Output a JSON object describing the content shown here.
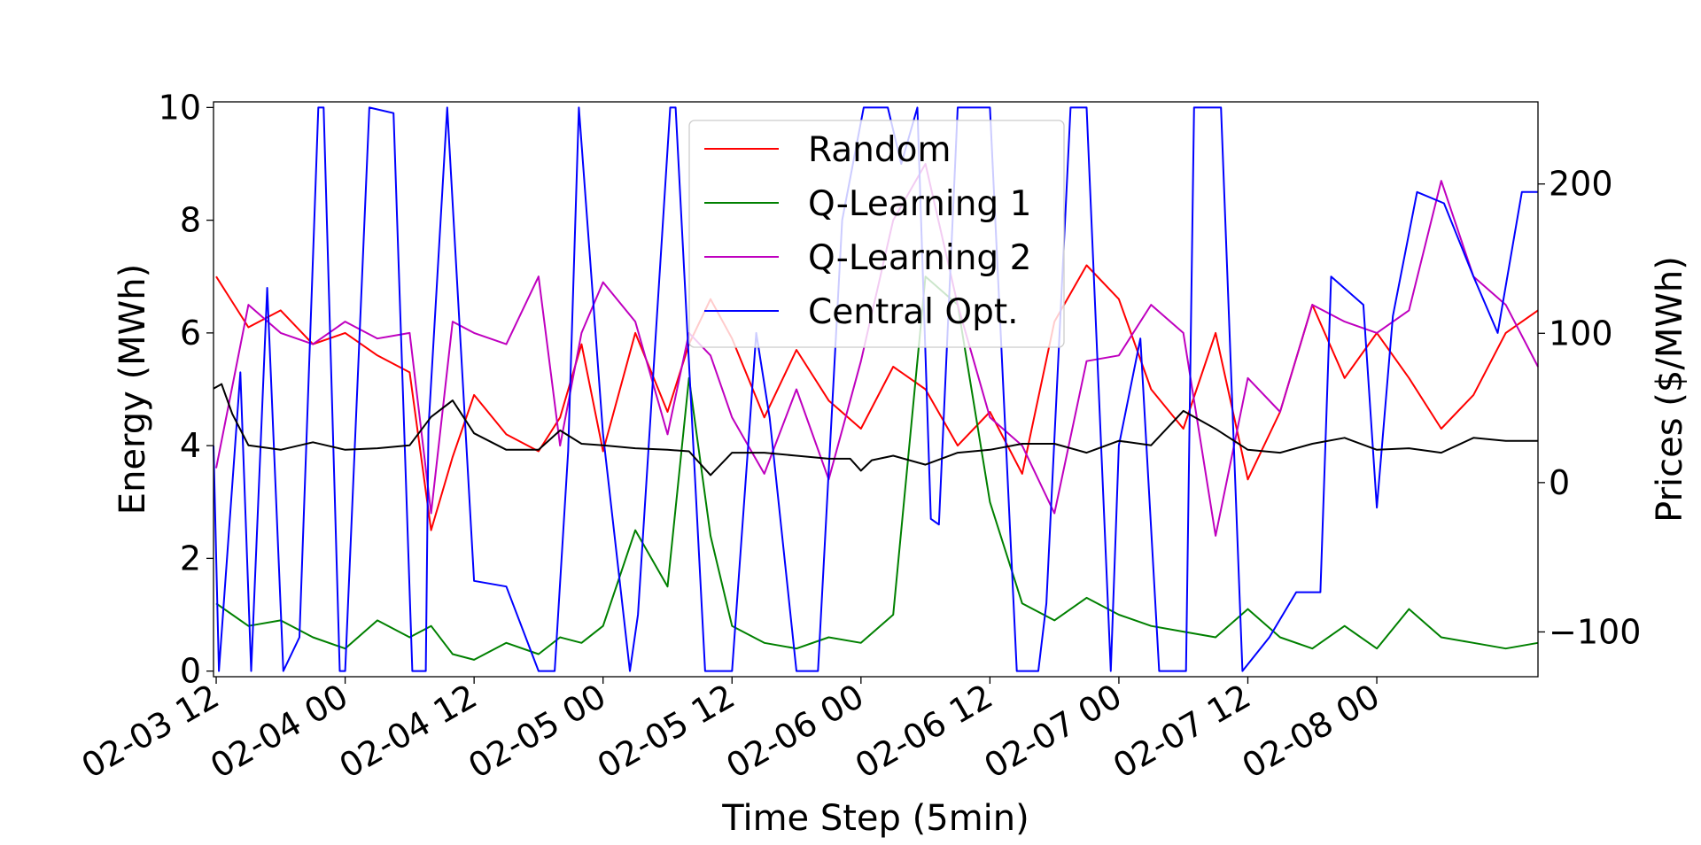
{
  "chart_data": {
    "type": "line",
    "xlabel": "Time Step (5min)",
    "ylabel": "Energy (MWh)",
    "y2label": "Prices ($/MWh)",
    "ylim": [
      -0.1,
      10.1
    ],
    "y2lim": [
      -130,
      255
    ],
    "yticks": [
      "0",
      "2",
      "4",
      "6",
      "8",
      "10"
    ],
    "y2ticks": [
      "−100",
      "0",
      "100",
      "200"
    ],
    "xlim": [
      "2024-02-03T11:45",
      "2024-02-08T15:00"
    ],
    "xticks": [
      "02-03 12",
      "02-04 00",
      "02-04 12",
      "02-05 00",
      "02-05 12",
      "02-06 00",
      "02-06 12",
      "02-07 00",
      "02-07 12",
      "02-08 00"
    ],
    "legend_position": "upper-center",
    "grid": false,
    "series": [
      {
        "name": "Random",
        "color": "#ff0000",
        "axis": "left",
        "x": [
          "2024-02-03T12:00",
          "2024-02-03T15:00",
          "2024-02-03T18:00",
          "2024-02-03T21:00",
          "2024-02-04T00:00",
          "2024-02-04T03:00",
          "2024-02-04T06:00",
          "2024-02-04T08:00",
          "2024-02-04T10:00",
          "2024-02-04T12:00",
          "2024-02-04T15:00",
          "2024-02-04T18:00",
          "2024-02-04T20:00",
          "2024-02-04T22:00",
          "2024-02-05T00:00",
          "2024-02-05T03:00",
          "2024-02-05T06:00",
          "2024-02-05T08:00",
          "2024-02-05T10:00",
          "2024-02-05T12:00",
          "2024-02-05T15:00",
          "2024-02-05T18:00",
          "2024-02-05T21:00",
          "2024-02-06T00:00",
          "2024-02-06T03:00",
          "2024-02-06T06:00",
          "2024-02-06T09:00",
          "2024-02-06T12:00",
          "2024-02-06T15:00",
          "2024-02-06T18:00",
          "2024-02-06T21:00",
          "2024-02-07T00:00",
          "2024-02-07T03:00",
          "2024-02-07T06:00",
          "2024-02-07T09:00",
          "2024-02-07T12:00",
          "2024-02-07T15:00",
          "2024-02-07T18:00",
          "2024-02-07T21:00",
          "2024-02-08T00:00",
          "2024-02-08T03:00",
          "2024-02-08T06:00",
          "2024-02-08T09:00",
          "2024-02-08T12:00",
          "2024-02-08T15:00"
        ],
        "y": [
          7.0,
          6.1,
          6.4,
          5.8,
          6.0,
          5.6,
          5.3,
          2.5,
          3.8,
          4.9,
          4.2,
          3.9,
          4.5,
          5.8,
          3.9,
          6.0,
          4.6,
          5.8,
          6.6,
          5.9,
          4.5,
          5.7,
          4.8,
          4.3,
          5.4,
          5.0,
          4.0,
          4.6,
          3.5,
          6.2,
          7.2,
          6.6,
          5.0,
          4.3,
          6.0,
          3.4,
          4.6,
          6.5,
          5.2,
          6.0,
          5.2,
          4.3,
          4.9,
          6.0,
          6.4
        ]
      },
      {
        "name": "Q-Learning 1",
        "color": "#008000",
        "axis": "left",
        "x": [
          "2024-02-03T12:00",
          "2024-02-03T15:00",
          "2024-02-03T18:00",
          "2024-02-03T21:00",
          "2024-02-04T00:00",
          "2024-02-04T03:00",
          "2024-02-04T06:00",
          "2024-02-04T08:00",
          "2024-02-04T10:00",
          "2024-02-04T12:00",
          "2024-02-04T15:00",
          "2024-02-04T18:00",
          "2024-02-04T20:00",
          "2024-02-04T22:00",
          "2024-02-05T00:00",
          "2024-02-05T03:00",
          "2024-02-05T06:00",
          "2024-02-05T08:00",
          "2024-02-05T10:00",
          "2024-02-05T12:00",
          "2024-02-05T15:00",
          "2024-02-05T18:00",
          "2024-02-05T21:00",
          "2024-02-06T00:00",
          "2024-02-06T03:00",
          "2024-02-06T06:00",
          "2024-02-06T09:00",
          "2024-02-06T12:00",
          "2024-02-06T15:00",
          "2024-02-06T18:00",
          "2024-02-06T21:00",
          "2024-02-07T00:00",
          "2024-02-07T03:00",
          "2024-02-07T06:00",
          "2024-02-07T09:00",
          "2024-02-07T12:00",
          "2024-02-07T15:00",
          "2024-02-07T18:00",
          "2024-02-07T21:00",
          "2024-02-08T00:00",
          "2024-02-08T03:00",
          "2024-02-08T06:00",
          "2024-02-08T09:00",
          "2024-02-08T12:00",
          "2024-02-08T15:00"
        ],
        "y": [
          1.2,
          0.8,
          0.9,
          0.6,
          0.4,
          0.9,
          0.6,
          0.8,
          0.3,
          0.2,
          0.5,
          0.3,
          0.6,
          0.5,
          0.8,
          2.5,
          1.5,
          5.2,
          2.4,
          0.8,
          0.5,
          0.4,
          0.6,
          0.5,
          1.0,
          7.0,
          6.5,
          3.0,
          1.2,
          0.9,
          1.3,
          1.0,
          0.8,
          0.7,
          0.6,
          1.1,
          0.6,
          0.4,
          0.8,
          0.4,
          1.1,
          0.6,
          0.5,
          0.4,
          0.5
        ]
      },
      {
        "name": "Q-Learning 2",
        "color": "#bf00bf",
        "axis": "left",
        "x": [
          "2024-02-03T12:00",
          "2024-02-03T15:00",
          "2024-02-03T18:00",
          "2024-02-03T21:00",
          "2024-02-04T00:00",
          "2024-02-04T03:00",
          "2024-02-04T06:00",
          "2024-02-04T08:00",
          "2024-02-04T10:00",
          "2024-02-04T12:00",
          "2024-02-04T15:00",
          "2024-02-04T18:00",
          "2024-02-04T20:00",
          "2024-02-04T22:00",
          "2024-02-05T00:00",
          "2024-02-05T03:00",
          "2024-02-05T06:00",
          "2024-02-05T08:00",
          "2024-02-05T10:00",
          "2024-02-05T12:00",
          "2024-02-05T15:00",
          "2024-02-05T18:00",
          "2024-02-05T21:00",
          "2024-02-06T00:00",
          "2024-02-06T03:00",
          "2024-02-06T06:00",
          "2024-02-06T09:00",
          "2024-02-06T12:00",
          "2024-02-06T15:00",
          "2024-02-06T18:00",
          "2024-02-06T21:00",
          "2024-02-07T00:00",
          "2024-02-07T03:00",
          "2024-02-07T06:00",
          "2024-02-07T09:00",
          "2024-02-07T12:00",
          "2024-02-07T15:00",
          "2024-02-07T18:00",
          "2024-02-07T21:00",
          "2024-02-08T00:00",
          "2024-02-08T03:00",
          "2024-02-08T06:00",
          "2024-02-08T09:00",
          "2024-02-08T12:00",
          "2024-02-08T15:00"
        ],
        "y": [
          3.6,
          6.5,
          6.0,
          5.8,
          6.2,
          5.9,
          6.0,
          2.8,
          6.2,
          6.0,
          5.8,
          7.0,
          4.0,
          6.0,
          6.9,
          6.2,
          4.2,
          6.0,
          5.6,
          4.5,
          3.5,
          5.0,
          3.4,
          5.5,
          8.0,
          9.0,
          6.5,
          4.5,
          4.0,
          2.8,
          5.5,
          5.6,
          6.5,
          6.0,
          2.4,
          5.2,
          4.6,
          6.5,
          6.2,
          6.0,
          6.4,
          8.7,
          7.0,
          6.5,
          5.4
        ]
      },
      {
        "name": "Central Opt.",
        "color": "#0000ff",
        "axis": "left",
        "x": [
          "2024-02-03T11:45",
          "2024-02-03T12:15",
          "2024-02-03T14:15",
          "2024-02-03T15:15",
          "2024-02-03T16:45",
          "2024-02-03T18:15",
          "2024-02-03T19:45",
          "2024-02-03T21:30",
          "2024-02-03T22:00",
          "2024-02-03T23:30",
          "2024-02-04T00:00",
          "2024-02-04T02:15",
          "2024-02-04T04:30",
          "2024-02-04T06:15",
          "2024-02-04T07:30",
          "2024-02-04T07:45",
          "2024-02-04T09:30",
          "2024-02-04T12:00",
          "2024-02-04T15:00",
          "2024-02-04T18:00",
          "2024-02-04T19:30",
          "2024-02-04T20:45",
          "2024-02-04T21:45",
          "2024-02-05T00:00",
          "2024-02-05T02:30",
          "2024-02-05T03:15",
          "2024-02-05T06:15",
          "2024-02-05T06:45",
          "2024-02-05T09:30",
          "2024-02-05T12:00",
          "2024-02-05T14:15",
          "2024-02-05T15:30",
          "2024-02-05T18:00",
          "2024-02-05T20:00",
          "2024-02-05T22:15",
          "2024-02-06T00:15",
          "2024-02-06T02:30",
          "2024-02-06T03:45",
          "2024-02-06T05:15",
          "2024-02-06T06:30",
          "2024-02-06T07:15",
          "2024-02-06T09:00",
          "2024-02-06T12:00",
          "2024-02-06T14:30",
          "2024-02-06T16:30",
          "2024-02-06T17:15",
          "2024-02-06T19:30",
          "2024-02-06T21:00",
          "2024-02-06T23:15",
          "2024-02-07T00:00",
          "2024-02-07T02:00",
          "2024-02-07T03:45",
          "2024-02-07T06:15",
          "2024-02-07T07:00",
          "2024-02-07T09:30",
          "2024-02-07T11:30",
          "2024-02-07T14:00",
          "2024-02-07T16:30",
          "2024-02-07T18:45",
          "2024-02-07T19:45",
          "2024-02-07T22:45",
          "2024-02-08T00:00",
          "2024-02-08T01:30",
          "2024-02-08T03:45",
          "2024-02-08T06:15",
          "2024-02-08T09:00",
          "2024-02-08T11:15",
          "2024-02-08T13:30",
          "2024-02-08T15:00"
        ],
        "y": [
          4.0,
          0.0,
          5.3,
          0.0,
          6.8,
          0.0,
          0.6,
          10.0,
          10.0,
          0.0,
          0.0,
          10.0,
          9.9,
          0.0,
          0.0,
          4.3,
          10.0,
          1.6,
          1.5,
          0.0,
          0.0,
          3.9,
          10.0,
          4.2,
          0.0,
          1.0,
          10.0,
          10.0,
          0.0,
          0.0,
          6.0,
          4.5,
          0.0,
          0.0,
          8.0,
          10.0,
          10.0,
          9.0,
          10.0,
          2.7,
          2.6,
          10.0,
          10.0,
          0.0,
          0.0,
          1.2,
          10.0,
          10.0,
          0.0,
          4.0,
          5.9,
          0.0,
          0.0,
          10.0,
          10.0,
          0.0,
          0.6,
          1.4,
          1.4,
          7.0,
          6.5,
          2.9,
          6.3,
          8.5,
          8.3,
          7.0,
          6.0,
          8.5,
          8.5
        ]
      },
      {
        "name": "",
        "color": "#000000",
        "axis": "right",
        "x": [
          "2024-02-03T11:45",
          "2024-02-03T12:30",
          "2024-02-03T13:30",
          "2024-02-03T15:00",
          "2024-02-03T18:00",
          "2024-02-03T21:00",
          "2024-02-04T00:00",
          "2024-02-04T03:00",
          "2024-02-04T06:00",
          "2024-02-04T08:00",
          "2024-02-04T10:00",
          "2024-02-04T12:00",
          "2024-02-04T15:00",
          "2024-02-04T18:00",
          "2024-02-04T20:00",
          "2024-02-04T22:00",
          "2024-02-05T00:00",
          "2024-02-05T03:00",
          "2024-02-05T06:00",
          "2024-02-05T08:00",
          "2024-02-05T10:00",
          "2024-02-05T12:00",
          "2024-02-05T15:00",
          "2024-02-05T18:00",
          "2024-02-05T21:00",
          "2024-02-05T23:00",
          "2024-02-06T00:00",
          "2024-02-06T01:00",
          "2024-02-06T03:00",
          "2024-02-06T06:00",
          "2024-02-06T09:00",
          "2024-02-06T12:00",
          "2024-02-06T15:00",
          "2024-02-06T18:00",
          "2024-02-06T21:00",
          "2024-02-07T00:00",
          "2024-02-07T03:00",
          "2024-02-07T06:00",
          "2024-02-07T09:00",
          "2024-02-07T12:00",
          "2024-02-07T15:00",
          "2024-02-07T18:00",
          "2024-02-07T21:00",
          "2024-02-08T00:00",
          "2024-02-08T03:00",
          "2024-02-08T06:00",
          "2024-02-08T09:00",
          "2024-02-08T12:00",
          "2024-02-08T15:00"
        ],
        "y": [
          63,
          66,
          46,
          25,
          22,
          27,
          22,
          23,
          25,
          44,
          55,
          33,
          22,
          22,
          35,
          26,
          25,
          23,
          22,
          21,
          5,
          20,
          20,
          18,
          16,
          16,
          8,
          15,
          18,
          12,
          20,
          22,
          26,
          26,
          20,
          28,
          25,
          48,
          36,
          22,
          20,
          26,
          30,
          22,
          23,
          20,
          30,
          28,
          28
        ]
      }
    ]
  }
}
